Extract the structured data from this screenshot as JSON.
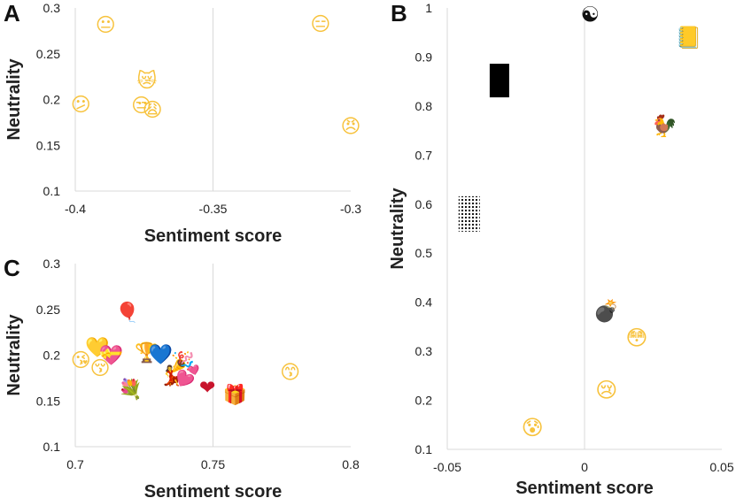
{
  "chart_data": [
    {
      "panel": "A",
      "type": "scatter",
      "xlabel": "Sentiment score",
      "ylabel": "Neutrality",
      "xlim": [
        -0.4,
        -0.3
      ],
      "ylim": [
        0.1,
        0.3
      ],
      "xticks": [
        "-0.4",
        "-0.35",
        "-0.3"
      ],
      "xtick_values": [
        -0.4,
        -0.35,
        -0.3
      ],
      "yticks": [
        "0.1",
        "0.15",
        "0.2",
        "0.25",
        "0.3"
      ],
      "ytick_values": [
        0.1,
        0.15,
        0.2,
        0.25,
        0.3
      ],
      "grid": "center lines only",
      "points": [
        {
          "icon": "neutral-face",
          "glyph": "😐",
          "color": "#f7c23c",
          "x": -0.389,
          "y": 0.282
        },
        {
          "icon": "expressionless-face",
          "glyph": "😑",
          "color": "#f7c23c",
          "x": -0.311,
          "y": 0.283
        },
        {
          "icon": "crying-cat-face",
          "glyph": "😿",
          "color": "#f7c23c",
          "x": -0.374,
          "y": 0.221
        },
        {
          "icon": "confused-face",
          "glyph": "😕",
          "color": "#f7c23c",
          "x": -0.398,
          "y": 0.195
        },
        {
          "icon": "unamused-face",
          "glyph": "😒",
          "color": "#f7c23c",
          "x": -0.376,
          "y": 0.194
        },
        {
          "icon": "weary-face",
          "glyph": "😩",
          "color": "#f7c23c",
          "x": -0.372,
          "y": 0.189
        },
        {
          "icon": "angry-face",
          "glyph": "😠",
          "color": "#f7c23c",
          "x": -0.3,
          "y": 0.171
        }
      ]
    },
    {
      "panel": "B",
      "type": "scatter",
      "xlabel": "Sentiment score",
      "ylabel": "Neutrality",
      "xlim": [
        -0.05,
        0.05
      ],
      "ylim": [
        0.1,
        1
      ],
      "xticks": [
        "-0.05",
        "0",
        "0.05"
      ],
      "xtick_values": [
        -0.05,
        0,
        0.05
      ],
      "yticks": [
        "0.1",
        "0.2",
        "0.3",
        "0.4",
        "0.5",
        "0.6",
        "0.7",
        "0.8",
        "0.9",
        "1"
      ],
      "ytick_values": [
        0.1,
        0.2,
        0.3,
        0.4,
        0.5,
        0.6,
        0.7,
        0.8,
        0.9,
        1
      ],
      "grid": "center lines only",
      "points": [
        {
          "icon": "yin-yang",
          "glyph": "☯",
          "color": "#111111",
          "x": 0.002,
          "y": 0.987
        },
        {
          "icon": "notebook",
          "glyph": "📒",
          "color": "#f4a21a",
          "x": 0.038,
          "y": 0.94
        },
        {
          "icon": "black-rectangle",
          "glyph": "",
          "color": "#000000",
          "x": -0.031,
          "y": 0.852
        },
        {
          "icon": "rooster",
          "glyph": "🐓",
          "color": "#dddddd",
          "x": 0.029,
          "y": 0.76
        },
        {
          "icon": "dotted-square",
          "glyph": "",
          "color": "#000000",
          "x": -0.042,
          "y": 0.58
        },
        {
          "icon": "bomb",
          "glyph": "💣",
          "color": "#222222",
          "x": 0.008,
          "y": 0.383
        },
        {
          "icon": "flushed-face",
          "glyph": "😳",
          "color": "#f7c23c",
          "x": 0.019,
          "y": 0.328
        },
        {
          "icon": "crying-face",
          "glyph": "😢",
          "color": "#f7c23c",
          "x": 0.008,
          "y": 0.222
        },
        {
          "icon": "anxious-face-with-sweat",
          "glyph": "😰",
          "color": "#f7c23c",
          "x": -0.019,
          "y": 0.145
        }
      ]
    },
    {
      "panel": "C",
      "type": "scatter",
      "xlabel": "Sentiment score",
      "ylabel": "Neutrality",
      "xlim": [
        0.7,
        0.8
      ],
      "ylim": [
        0.1,
        0.3
      ],
      "xticks": [
        "0.7",
        "0.75",
        "0.8"
      ],
      "xtick_values": [
        0.7,
        0.75,
        0.8
      ],
      "yticks": [
        "0.1",
        "0.15",
        "0.2",
        "0.25",
        "0.3"
      ],
      "ytick_values": [
        0.1,
        0.15,
        0.2,
        0.25,
        0.3
      ],
      "grid": "center lines only",
      "points": [
        {
          "icon": "balloon",
          "glyph": "🎈",
          "color": "#c21b1b",
          "x": 0.719,
          "y": 0.247
        },
        {
          "icon": "yellow-heart",
          "glyph": "💛",
          "color": "#f7c23c",
          "x": 0.708,
          "y": 0.209
        },
        {
          "icon": "trophy",
          "glyph": "🏆",
          "color": "#f4a21a",
          "x": 0.726,
          "y": 0.203
        },
        {
          "icon": "blue-heart",
          "glyph": "💙",
          "color": "#5eb8f0",
          "x": 0.731,
          "y": 0.201
        },
        {
          "icon": "heart-with-ribbon",
          "glyph": "💝",
          "color": "#f03d8c",
          "x": 0.713,
          "y": 0.2
        },
        {
          "icon": "party-popper",
          "glyph": "🎉",
          "color": "#d4307a",
          "x": 0.739,
          "y": 0.193
        },
        {
          "icon": "face-blowing-kiss",
          "glyph": "😘",
          "color": "#f7c23c",
          "x": 0.702,
          "y": 0.195
        },
        {
          "icon": "kissing-face",
          "glyph": "😚",
          "color": "#f7c23c",
          "x": 0.709,
          "y": 0.186
        },
        {
          "icon": "woman-dancing",
          "glyph": "💃",
          "color": "#d3252a",
          "x": 0.735,
          "y": 0.178
        },
        {
          "icon": "two-hearts",
          "glyph": "💕",
          "color": "#f03d8c",
          "x": 0.741,
          "y": 0.178
        },
        {
          "icon": "kissing-face-with-smiling-eyes",
          "glyph": "😙",
          "color": "#f7c23c",
          "x": 0.778,
          "y": 0.182
        },
        {
          "icon": "bouquet",
          "glyph": "💐",
          "color": "#e8457a",
          "x": 0.72,
          "y": 0.163
        },
        {
          "icon": "red-heart",
          "glyph": "❤",
          "color": "#c8142c",
          "x": 0.748,
          "y": 0.165
        },
        {
          "icon": "wrapped-gift",
          "glyph": "🎁",
          "color": "#f4a21a",
          "x": 0.758,
          "y": 0.157
        }
      ]
    }
  ]
}
